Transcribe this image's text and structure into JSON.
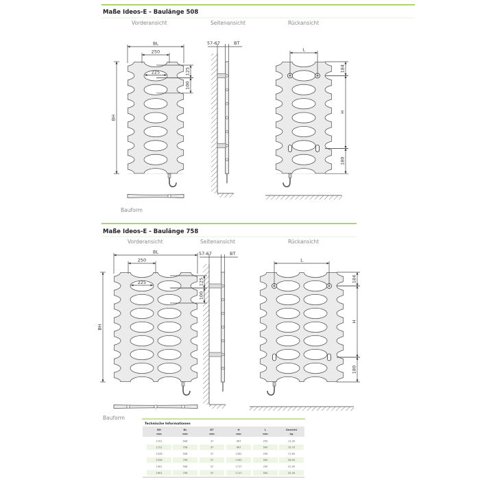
{
  "colors": {
    "accent": "#8dc63f",
    "body_fill": "#ebebeb",
    "outline": "#555555"
  },
  "sections": [
    {
      "title": "Maße Ideos-E - Baulänge 508",
      "views": [
        "Vorderansicht",
        "Seitenansicht",
        "Rückansicht"
      ],
      "dims": {
        "bl": "BL",
        "pitch": "250",
        "hole": "225",
        "d125": "125",
        "d100": "100",
        "bh": "BH",
        "wall": "57-67",
        "bt": "BT",
        "l": "L",
        "d184": "184",
        "h": "H",
        "d180": "180"
      },
      "bauform": "Bauform"
    },
    {
      "title": "Maße Ideos-E - Baulänge 758",
      "views": [
        "Vorderansicht",
        "Seitenansicht",
        "Rückansicht"
      ],
      "dims": {
        "bl": "BL",
        "pitch": "250",
        "hole": "225",
        "d125": "125",
        "d100": "100",
        "bh": "BH",
        "wall": "57-67",
        "bt": "BT",
        "l": "L",
        "d184": "184",
        "h": "H",
        "d180": "180"
      },
      "bauform": "Bauform"
    }
  ],
  "table": {
    "title": "Technische Informationen",
    "headers": [
      [
        "BH",
        "mm"
      ],
      [
        "BL",
        "mm"
      ],
      [
        "BT",
        "mm"
      ],
      [
        "H",
        "mm"
      ],
      [
        "L",
        "mm"
      ],
      [
        "Gewicht",
        "kg"
      ]
    ],
    "rows": [
      [
        "1151",
        "508",
        "37",
        "967",
        "250",
        "13,30"
      ],
      [
        "1151",
        "758",
        "37",
        "967",
        "500",
        "19,70"
      ],
      [
        "1526",
        "508",
        "37",
        "1342",
        "250",
        "17,60"
      ],
      [
        "1526",
        "758",
        "37",
        "1342",
        "500",
        "26,00"
      ],
      [
        "1901",
        "508",
        "37",
        "1717",
        "250",
        "21,90"
      ],
      [
        "1901",
        "758",
        "37",
        "1717",
        "500",
        "32,30"
      ]
    ]
  }
}
